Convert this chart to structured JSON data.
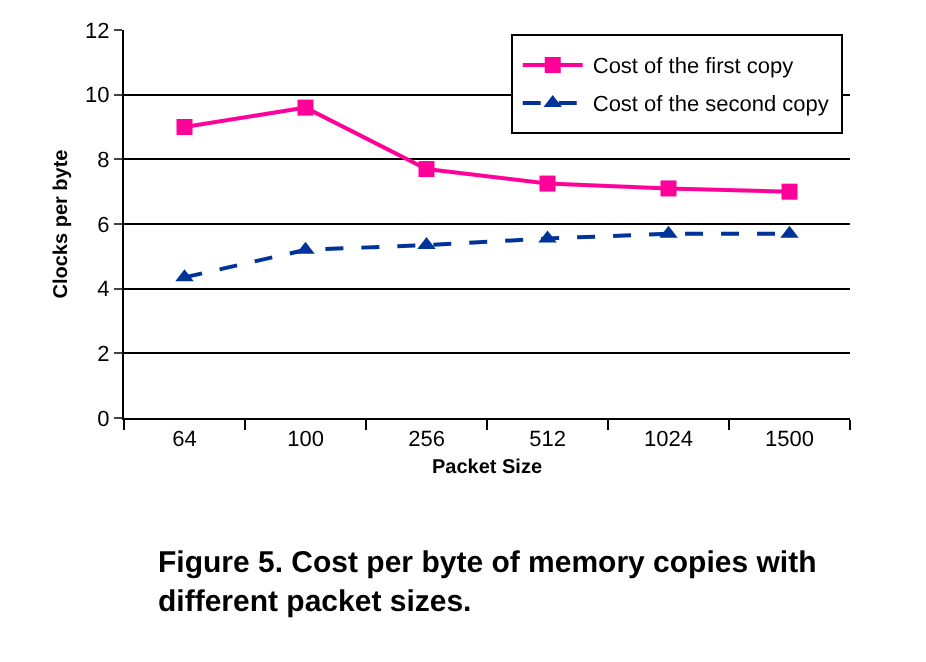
{
  "chart_data": {
    "type": "line",
    "xlabel": "Packet Size",
    "ylabel": "Clocks per byte",
    "categories": [
      "64",
      "100",
      "256",
      "512",
      "1024",
      "1500"
    ],
    "series": [
      {
        "name": "Cost of the first copy",
        "color": "#ff0099",
        "values": [
          9.0,
          9.6,
          7.7,
          7.25,
          7.1,
          7.0
        ],
        "marker": "square",
        "line_style": "solid"
      },
      {
        "name": "Cost of the second copy",
        "color": "#003399",
        "values": [
          4.35,
          5.2,
          5.35,
          5.55,
          5.7,
          5.7
        ],
        "marker": "triangle",
        "line_style": "dashed"
      }
    ],
    "ylim": [
      0,
      12
    ],
    "yticks": [
      0,
      2,
      4,
      6,
      8,
      10,
      12
    ],
    "grid": "y",
    "legend": "top right",
    "annotations": [
      "Figure 5. Cost per byte of memory copies with different packet sizes."
    ]
  }
}
